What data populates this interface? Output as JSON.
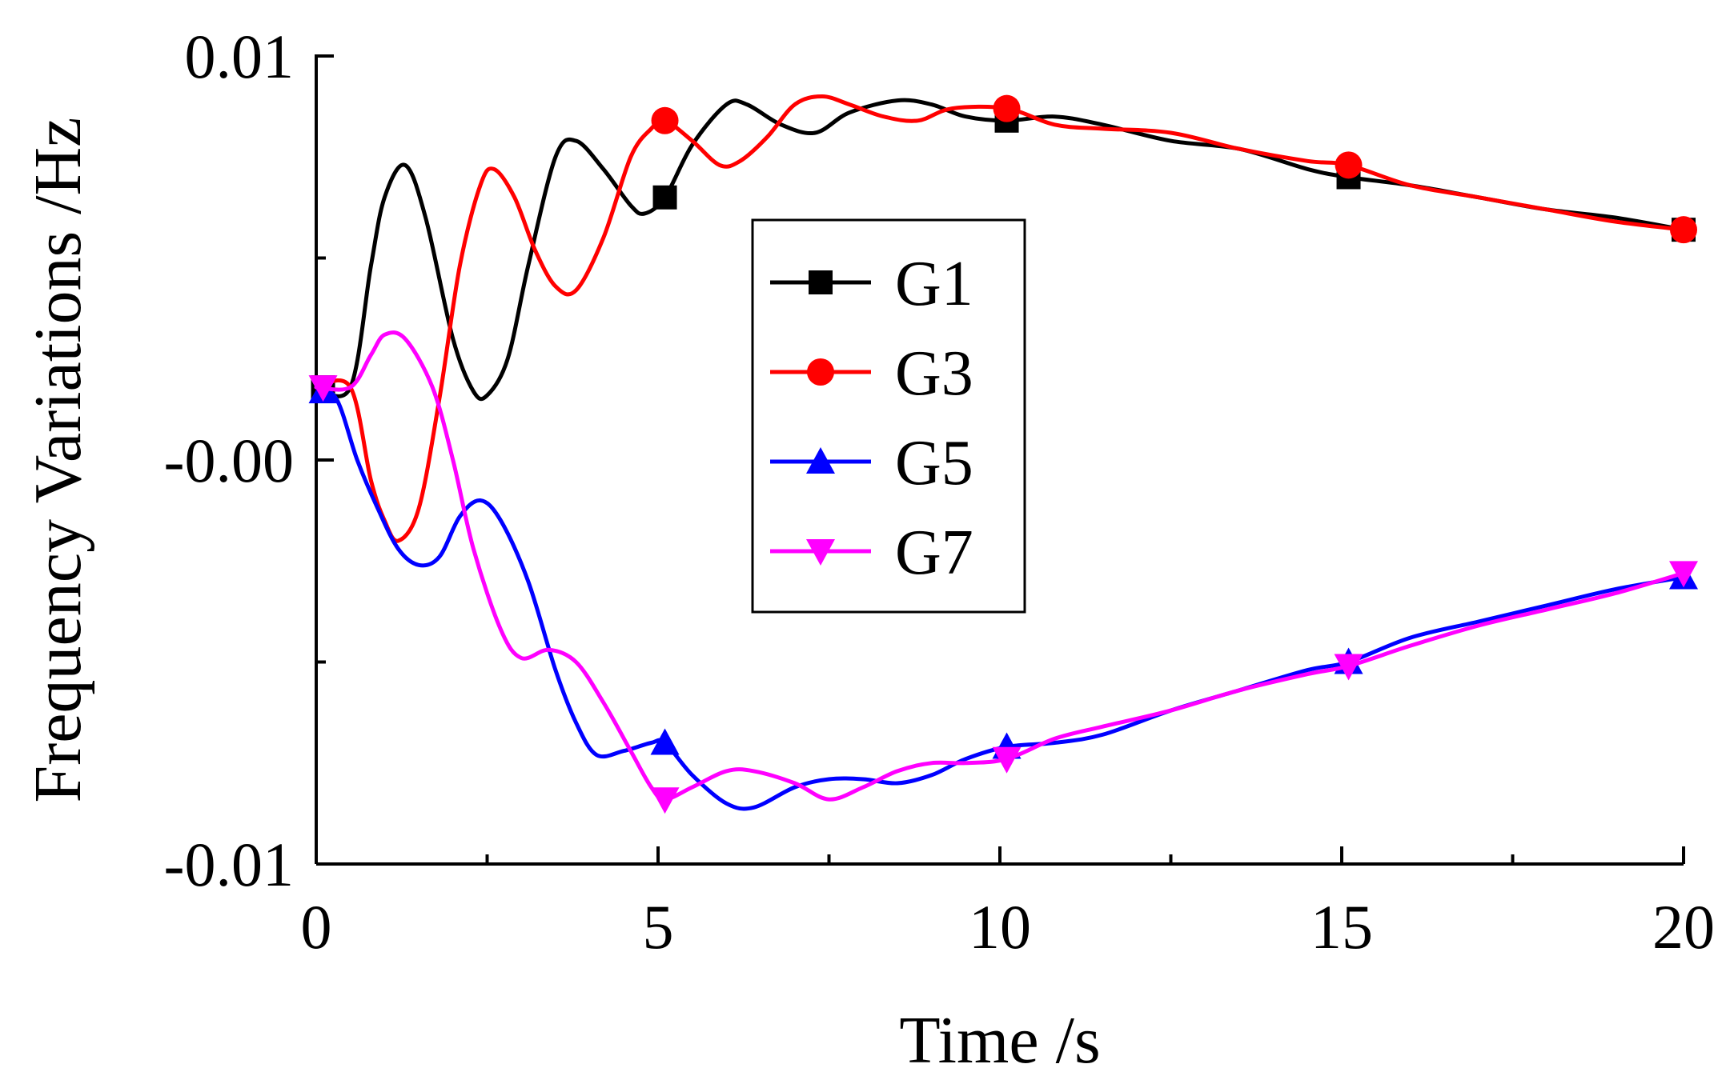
{
  "chart_data": {
    "type": "line",
    "xlabel": "Time /s",
    "ylabel": "Frequency Variations /Hz",
    "xlim": [
      0,
      20
    ],
    "ylim": [
      -0.01,
      0.01
    ],
    "x_ticks": [
      0,
      5,
      10,
      15,
      20
    ],
    "x_minor_ticks": [
      2.5,
      7.5,
      12.5,
      17.5
    ],
    "y_ticks": [
      {
        "value": 0.01,
        "label": "0.01"
      },
      {
        "value": 0.0,
        "label": "-0.00"
      },
      {
        "value": -0.01,
        "label": "-0.01"
      }
    ],
    "y_minor_ticks": [
      0.005,
      -0.005
    ],
    "grid": false,
    "legend_position": "center",
    "series": [
      {
        "name": "G1",
        "color": "#000000",
        "marker": "square",
        "marker_x": [
          0.1,
          5.1,
          10.1,
          15.1,
          20
        ],
        "points": [
          [
            0,
            0.0018
          ],
          [
            0.5,
            0.0018
          ],
          [
            0.8,
            0.0048
          ],
          [
            1.0,
            0.0065
          ],
          [
            1.3,
            0.0073
          ],
          [
            1.6,
            0.006
          ],
          [
            2.0,
            0.003
          ],
          [
            2.3,
            0.0017
          ],
          [
            2.5,
            0.0016
          ],
          [
            2.8,
            0.0025
          ],
          [
            3.1,
            0.0048
          ],
          [
            3.5,
            0.0075
          ],
          [
            3.8,
            0.0079
          ],
          [
            4.2,
            0.0072
          ],
          [
            4.6,
            0.0063
          ],
          [
            4.8,
            0.0061
          ],
          [
            5.1,
            0.0065
          ],
          [
            5.5,
            0.0078
          ],
          [
            6.0,
            0.0088
          ],
          [
            6.3,
            0.0088
          ],
          [
            6.8,
            0.0083
          ],
          [
            7.3,
            0.0081
          ],
          [
            7.8,
            0.0086
          ],
          [
            8.5,
            0.0089
          ],
          [
            9.0,
            0.0088
          ],
          [
            9.5,
            0.0085
          ],
          [
            10.1,
            0.0084
          ],
          [
            10.8,
            0.0085
          ],
          [
            11.5,
            0.0083
          ],
          [
            12.5,
            0.0079
          ],
          [
            13.5,
            0.0077
          ],
          [
            14.5,
            0.0072
          ],
          [
            15.1,
            0.007
          ],
          [
            16.0,
            0.0068
          ],
          [
            17.0,
            0.0065
          ],
          [
            18.0,
            0.0062
          ],
          [
            19.0,
            0.006
          ],
          [
            20,
            0.0057
          ]
        ]
      },
      {
        "name": "G3",
        "color": "#ff0000",
        "marker": "circle",
        "marker_x": [
          5.1,
          10.1,
          15.1,
          20
        ],
        "points": [
          [
            0,
            0.0018
          ],
          [
            0.5,
            0.0018
          ],
          [
            0.8,
            -0.0005
          ],
          [
            1.0,
            -0.0015
          ],
          [
            1.2,
            -0.002
          ],
          [
            1.5,
            -0.0012
          ],
          [
            1.8,
            0.0015
          ],
          [
            2.1,
            0.0048
          ],
          [
            2.4,
            0.0068
          ],
          [
            2.6,
            0.0072
          ],
          [
            2.9,
            0.0065
          ],
          [
            3.2,
            0.0052
          ],
          [
            3.5,
            0.0043
          ],
          [
            3.8,
            0.0042
          ],
          [
            4.2,
            0.0055
          ],
          [
            4.6,
            0.0075
          ],
          [
            4.9,
            0.0082
          ],
          [
            5.1,
            0.0084
          ],
          [
            5.5,
            0.0079
          ],
          [
            5.9,
            0.0073
          ],
          [
            6.2,
            0.0074
          ],
          [
            6.6,
            0.008
          ],
          [
            7.0,
            0.0088
          ],
          [
            7.4,
            0.009
          ],
          [
            7.8,
            0.0088
          ],
          [
            8.3,
            0.0085
          ],
          [
            8.8,
            0.0084
          ],
          [
            9.3,
            0.0087
          ],
          [
            10.1,
            0.0087
          ],
          [
            10.8,
            0.0083
          ],
          [
            11.5,
            0.0082
          ],
          [
            12.5,
            0.0081
          ],
          [
            13.5,
            0.0077
          ],
          [
            14.5,
            0.0074
          ],
          [
            15.1,
            0.0073
          ],
          [
            16.0,
            0.0068
          ],
          [
            17.0,
            0.0065
          ],
          [
            18.0,
            0.0062
          ],
          [
            19.0,
            0.0059
          ],
          [
            20,
            0.0057
          ]
        ]
      },
      {
        "name": "G5",
        "color": "#0000ff",
        "marker": "triangle-up",
        "marker_x": [
          0.1,
          5.1,
          10.1,
          15.1,
          20
        ],
        "points": [
          [
            0,
            0.0018
          ],
          [
            0.3,
            0.0015
          ],
          [
            0.6,
            0.0
          ],
          [
            0.9,
            -0.0012
          ],
          [
            1.2,
            -0.0022
          ],
          [
            1.5,
            -0.0026
          ],
          [
            1.8,
            -0.0024
          ],
          [
            2.1,
            -0.0014
          ],
          [
            2.4,
            -0.001
          ],
          [
            2.7,
            -0.0015
          ],
          [
            3.1,
            -0.003
          ],
          [
            3.5,
            -0.0052
          ],
          [
            3.8,
            -0.0065
          ],
          [
            4.1,
            -0.0073
          ],
          [
            4.5,
            -0.0072
          ],
          [
            4.9,
            -0.007
          ],
          [
            5.1,
            -0.007
          ],
          [
            5.5,
            -0.0078
          ],
          [
            6.0,
            -0.0085
          ],
          [
            6.4,
            -0.0086
          ],
          [
            7.0,
            -0.0081
          ],
          [
            7.5,
            -0.0079
          ],
          [
            8.0,
            -0.0079
          ],
          [
            8.5,
            -0.008
          ],
          [
            9.0,
            -0.0078
          ],
          [
            9.5,
            -0.0074
          ],
          [
            10.1,
            -0.0071
          ],
          [
            10.8,
            -0.007
          ],
          [
            11.5,
            -0.0068
          ],
          [
            12.5,
            -0.0062
          ],
          [
            13.5,
            -0.0057
          ],
          [
            14.5,
            -0.0052
          ],
          [
            15.1,
            -0.005
          ],
          [
            16.0,
            -0.0044
          ],
          [
            17.0,
            -0.004
          ],
          [
            18.0,
            -0.0036
          ],
          [
            19.0,
            -0.0032
          ],
          [
            20,
            -0.0029
          ]
        ]
      },
      {
        "name": "G7",
        "color": "#ff00ff",
        "marker": "triangle-down",
        "marker_x": [
          0.1,
          5.1,
          10.1,
          15.1,
          20
        ],
        "points": [
          [
            0,
            0.0018
          ],
          [
            0.5,
            0.0018
          ],
          [
            0.8,
            0.0026
          ],
          [
            1.0,
            0.0031
          ],
          [
            1.3,
            0.003
          ],
          [
            1.7,
            0.0018
          ],
          [
            2.0,
            0.0
          ],
          [
            2.3,
            -0.0022
          ],
          [
            2.7,
            -0.0042
          ],
          [
            3.0,
            -0.0049
          ],
          [
            3.4,
            -0.0047
          ],
          [
            3.8,
            -0.005
          ],
          [
            4.2,
            -0.006
          ],
          [
            4.6,
            -0.0072
          ],
          [
            4.9,
            -0.0081
          ],
          [
            5.1,
            -0.0084
          ],
          [
            5.5,
            -0.0081
          ],
          [
            6.0,
            -0.0077
          ],
          [
            6.4,
            -0.0077
          ],
          [
            7.0,
            -0.008
          ],
          [
            7.5,
            -0.0084
          ],
          [
            8.0,
            -0.0081
          ],
          [
            8.5,
            -0.0077
          ],
          [
            9.0,
            -0.0075
          ],
          [
            9.5,
            -0.0075
          ],
          [
            10.1,
            -0.0074
          ],
          [
            10.8,
            -0.0069
          ],
          [
            11.5,
            -0.0066
          ],
          [
            12.5,
            -0.0062
          ],
          [
            13.5,
            -0.0057
          ],
          [
            14.5,
            -0.0053
          ],
          [
            15.1,
            -0.0051
          ],
          [
            16.0,
            -0.0046
          ],
          [
            17.0,
            -0.0041
          ],
          [
            18.0,
            -0.0037
          ],
          [
            19.0,
            -0.0033
          ],
          [
            20,
            -0.0028
          ]
        ]
      }
    ]
  }
}
